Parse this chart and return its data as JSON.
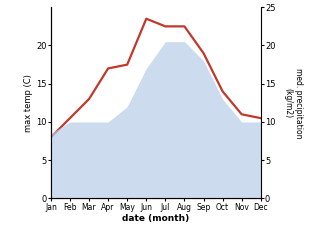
{
  "months": [
    "Jan",
    "Feb",
    "Mar",
    "Apr",
    "May",
    "Jun",
    "Jul",
    "Aug",
    "Sep",
    "Oct",
    "Nov",
    "Dec"
  ],
  "month_x": [
    1,
    2,
    3,
    4,
    5,
    6,
    7,
    8,
    9,
    10,
    11,
    12
  ],
  "max_temp": [
    8.0,
    10.5,
    13.0,
    17.0,
    17.5,
    23.5,
    22.5,
    22.5,
    19.0,
    14.0,
    11.0,
    10.5
  ],
  "precipitation": [
    8.5,
    10.0,
    10.0,
    10.0,
    12.0,
    17.0,
    20.5,
    20.5,
    18.0,
    13.0,
    10.0,
    10.0
  ],
  "temp_color": "#c0392b",
  "precip_color": "#b8cce8",
  "precip_fill_alpha": 0.7,
  "temp_ylim": [
    0,
    25
  ],
  "precip_ylim": [
    0,
    25
  ],
  "ylabel_left": "max temp (C)",
  "ylabel_right": "med. precipitation\n(kg/m2)",
  "xlabel": "date (month)",
  "temp_linewidth": 1.6,
  "background_color": "#ffffff",
  "yticks_left": [
    0,
    5,
    10,
    15,
    20
  ],
  "yticks_right": [
    0,
    5,
    10,
    15,
    20,
    25
  ],
  "figsize": [
    3.18,
    2.42
  ],
  "dpi": 100
}
